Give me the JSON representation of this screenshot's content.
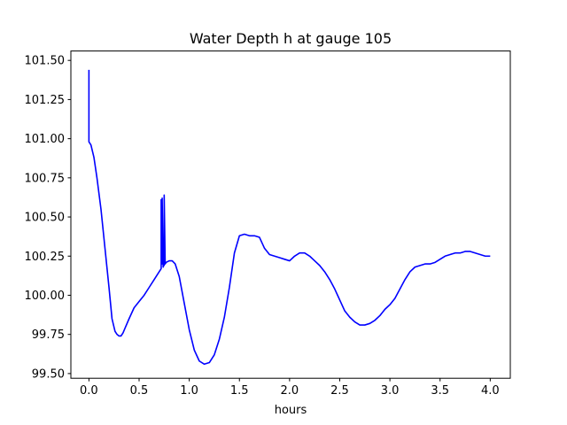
{
  "chart_data": {
    "type": "line",
    "title": "Water Depth h at gauge 105",
    "xlabel": "hours",
    "ylabel": "",
    "xlim": [
      -0.18,
      4.2
    ],
    "ylim": [
      99.47,
      101.56
    ],
    "xticks": [
      0.0,
      0.5,
      1.0,
      1.5,
      2.0,
      2.5,
      3.0,
      3.5,
      4.0
    ],
    "xtick_labels": [
      "0.0",
      "0.5",
      "1.0",
      "1.5",
      "2.0",
      "2.5",
      "3.0",
      "3.5",
      "4.0"
    ],
    "yticks": [
      99.5,
      99.75,
      100.0,
      100.25,
      100.5,
      100.75,
      101.0,
      101.25,
      101.5
    ],
    "ytick_labels": [
      "99.50",
      "99.75",
      "100.00",
      "100.25",
      "100.50",
      "100.75",
      "101.00",
      "101.25",
      "101.50"
    ],
    "grid": false,
    "series": [
      {
        "color": "#0000ff",
        "x": [
          0.0,
          0.0,
          0.0,
          0.02,
          0.05,
          0.08,
          0.12,
          0.16,
          0.2,
          0.23,
          0.26,
          0.28,
          0.3,
          0.32,
          0.34,
          0.36,
          0.4,
          0.45,
          0.5,
          0.55,
          0.6,
          0.65,
          0.7,
          0.72,
          0.72,
          0.73,
          0.73,
          0.74,
          0.74,
          0.75,
          0.75,
          0.76,
          0.76,
          0.77,
          0.8,
          0.83,
          0.86,
          0.9,
          0.95,
          1.0,
          1.05,
          1.1,
          1.15,
          1.2,
          1.25,
          1.3,
          1.35,
          1.4,
          1.45,
          1.5,
          1.55,
          1.6,
          1.65,
          1.7,
          1.75,
          1.8,
          1.85,
          1.9,
          1.95,
          2.0,
          2.05,
          2.1,
          2.15,
          2.2,
          2.25,
          2.3,
          2.35,
          2.4,
          2.45,
          2.5,
          2.55,
          2.6,
          2.65,
          2.7,
          2.75,
          2.8,
          2.85,
          2.9,
          2.95,
          3.0,
          3.05,
          3.1,
          3.15,
          3.2,
          3.25,
          3.3,
          3.35,
          3.4,
          3.45,
          3.5,
          3.55,
          3.6,
          3.65,
          3.7,
          3.75,
          3.8,
          3.85,
          3.9,
          3.95,
          4.0
        ],
        "y": [
          101.44,
          100.98,
          100.98,
          100.96,
          100.88,
          100.75,
          100.55,
          100.3,
          100.05,
          99.85,
          99.77,
          99.75,
          99.74,
          99.74,
          99.76,
          99.79,
          99.85,
          99.92,
          99.96,
          100.0,
          100.05,
          100.1,
          100.15,
          100.17,
          100.61,
          100.2,
          100.62,
          100.18,
          100.22,
          100.19,
          100.64,
          100.2,
          100.2,
          100.21,
          100.22,
          100.22,
          100.2,
          100.12,
          99.95,
          99.78,
          99.65,
          99.58,
          99.56,
          99.57,
          99.62,
          99.72,
          99.86,
          100.05,
          100.27,
          100.38,
          100.39,
          100.38,
          100.38,
          100.37,
          100.3,
          100.26,
          100.25,
          100.24,
          100.23,
          100.22,
          100.25,
          100.27,
          100.27,
          100.25,
          100.22,
          100.19,
          100.15,
          100.1,
          100.04,
          99.97,
          99.9,
          99.86,
          99.83,
          99.81,
          99.81,
          99.82,
          99.84,
          99.87,
          99.91,
          99.94,
          99.98,
          100.04,
          100.1,
          100.15,
          100.18,
          100.19,
          100.2,
          100.2,
          100.21,
          100.23,
          100.25,
          100.26,
          100.27,
          100.27,
          100.28,
          100.28,
          100.27,
          100.26,
          100.25,
          100.25
        ]
      }
    ]
  }
}
